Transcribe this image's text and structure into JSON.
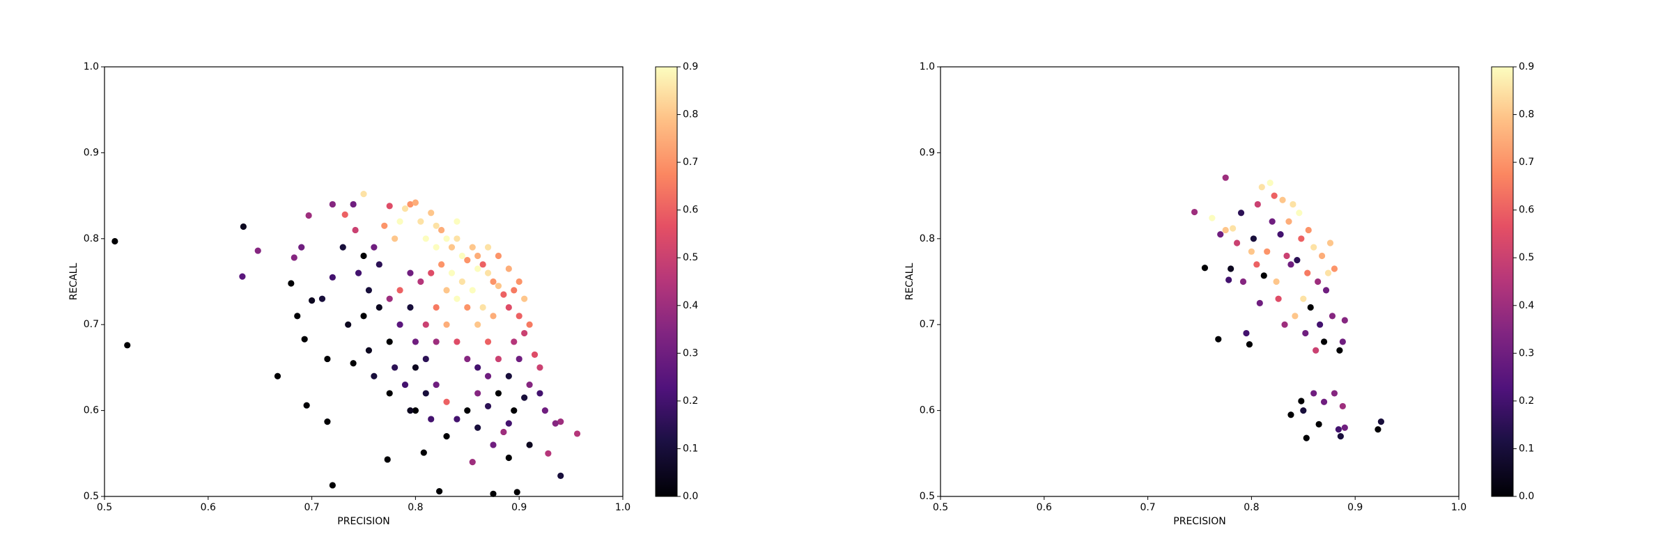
{
  "chart_data": [
    {
      "type": "scatter",
      "x_label": "PRECISION",
      "y_label": "RECALL",
      "xlim": [
        0.5,
        1
      ],
      "ylim": [
        0.5,
        1
      ],
      "xticks": [
        0.5,
        0.6,
        0.7,
        0.8,
        0.9,
        {
          "value": 1,
          "label": "1.0"
        }
      ],
      "yticks": [
        0.5,
        0.6,
        0.7,
        0.8,
        0.9,
        {
          "value": 1,
          "label": "1.0"
        }
      ],
      "colormap": "magma",
      "clim": [
        0,
        0.9
      ],
      "cticks": [
        {
          "value": 0,
          "label": "0.0"
        },
        0.1,
        0.2,
        0.3,
        0.4,
        0.5,
        0.6,
        0.7,
        0.8,
        0.9
      ],
      "x": [
        0.51,
        0.522,
        0.634,
        0.633,
        0.648,
        0.667,
        0.695,
        0.715,
        0.72,
        0.773,
        0.808,
        0.823,
        0.875,
        0.898,
        0.94,
        0.956,
        0.94,
        0.928,
        0.68,
        0.686,
        0.693,
        0.7,
        0.71,
        0.715,
        0.72,
        0.69,
        0.683,
        0.697,
        0.72,
        0.732,
        0.74,
        0.75,
        0.742,
        0.73,
        0.745,
        0.735,
        0.74,
        0.75,
        0.755,
        0.76,
        0.765,
        0.77,
        0.775,
        0.78,
        0.785,
        0.79,
        0.795,
        0.8,
        0.805,
        0.81,
        0.815,
        0.82,
        0.825,
        0.83,
        0.835,
        0.84,
        0.845,
        0.85,
        0.855,
        0.86,
        0.865,
        0.87,
        0.875,
        0.88,
        0.885,
        0.89,
        0.895,
        0.9,
        0.905,
        0.9,
        0.91,
        0.905,
        0.915,
        0.92,
        0.91,
        0.92,
        0.925,
        0.935,
        0.905,
        0.895,
        0.89,
        0.885,
        0.875,
        0.86,
        0.85,
        0.84,
        0.83,
        0.82,
        0.81,
        0.8,
        0.79,
        0.78,
        0.775,
        0.785,
        0.795,
        0.8,
        0.81,
        0.82,
        0.83,
        0.84,
        0.85,
        0.86,
        0.87,
        0.88,
        0.87,
        0.86,
        0.85,
        0.84,
        0.83,
        0.82,
        0.81,
        0.8,
        0.845,
        0.855,
        0.865,
        0.875,
        0.835,
        0.825,
        0.815,
        0.805,
        0.795,
        0.785,
        0.775,
        0.765,
        0.755,
        0.76,
        0.75,
        0.82,
        0.84,
        0.86,
        0.87,
        0.88,
        0.89,
        0.895,
        0.9,
        0.89,
        0.88,
        0.87,
        0.86,
        0.89,
        0.91,
        0.855,
        0.83,
        0.815,
        0.795,
        0.775
      ],
      "y": [
        0.797,
        0.676,
        0.814,
        0.756,
        0.786,
        0.64,
        0.606,
        0.587,
        0.513,
        0.543,
        0.551,
        0.506,
        0.503,
        0.505,
        0.524,
        0.573,
        0.587,
        0.55,
        0.748,
        0.71,
        0.683,
        0.728,
        0.73,
        0.66,
        0.755,
        0.79,
        0.778,
        0.827,
        0.84,
        0.828,
        0.84,
        0.852,
        0.81,
        0.79,
        0.76,
        0.7,
        0.655,
        0.71,
        0.67,
        0.64,
        0.77,
        0.815,
        0.838,
        0.8,
        0.82,
        0.835,
        0.84,
        0.842,
        0.82,
        0.8,
        0.83,
        0.815,
        0.81,
        0.8,
        0.79,
        0.8,
        0.78,
        0.775,
        0.79,
        0.765,
        0.77,
        0.76,
        0.75,
        0.745,
        0.735,
        0.765,
        0.74,
        0.75,
        0.73,
        0.71,
        0.7,
        0.69,
        0.665,
        0.65,
        0.63,
        0.62,
        0.6,
        0.585,
        0.615,
        0.6,
        0.585,
        0.575,
        0.56,
        0.58,
        0.6,
        0.59,
        0.61,
        0.63,
        0.62,
        0.6,
        0.63,
        0.65,
        0.68,
        0.7,
        0.72,
        0.68,
        0.7,
        0.72,
        0.74,
        0.73,
        0.72,
        0.7,
        0.68,
        0.66,
        0.64,
        0.65,
        0.66,
        0.68,
        0.7,
        0.68,
        0.66,
        0.65,
        0.75,
        0.74,
        0.72,
        0.71,
        0.76,
        0.77,
        0.76,
        0.75,
        0.76,
        0.74,
        0.73,
        0.72,
        0.74,
        0.79,
        0.78,
        0.79,
        0.82,
        0.78,
        0.79,
        0.78,
        0.72,
        0.68,
        0.66,
        0.64,
        0.62,
        0.605,
        0.62,
        0.545,
        0.56,
        0.54,
        0.57,
        0.59,
        0.6,
        0.62
      ],
      "c": [
        0,
        0,
        0.05,
        0.25,
        0.35,
        0,
        0,
        0,
        0,
        0,
        0,
        0,
        0,
        0,
        0.1,
        0.45,
        0.4,
        0.45,
        0,
        0,
        0,
        0.05,
        0.1,
        0,
        0.2,
        0.3,
        0.35,
        0.4,
        0.35,
        0.6,
        0.3,
        0.85,
        0.5,
        0.1,
        0.2,
        0.05,
        0,
        0,
        0.05,
        0.1,
        0.15,
        0.7,
        0.55,
        0.8,
        0.9,
        0.85,
        0.7,
        0.75,
        0.85,
        0.9,
        0.8,
        0.85,
        0.75,
        0.9,
        0.8,
        0.85,
        0.9,
        0.7,
        0.8,
        0.9,
        0.6,
        0.85,
        0.7,
        0.8,
        0.6,
        0.75,
        0.65,
        0.7,
        0.8,
        0.6,
        0.65,
        0.5,
        0.55,
        0.5,
        0.35,
        0.2,
        0.3,
        0.35,
        0.1,
        0,
        0.2,
        0.4,
        0.3,
        0.1,
        0,
        0.2,
        0.6,
        0.3,
        0.1,
        0,
        0.2,
        0.15,
        0,
        0.25,
        0.1,
        0.3,
        0.5,
        0.65,
        0.8,
        0.9,
        0.7,
        0.8,
        0.6,
        0.5,
        0.3,
        0.2,
        0.35,
        0.55,
        0.75,
        0.4,
        0.15,
        0.05,
        0.85,
        0.9,
        0.85,
        0.75,
        0.9,
        0.7,
        0.55,
        0.45,
        0.3,
        0.6,
        0.4,
        0.05,
        0.1,
        0.3,
        0,
        0.9,
        0.9,
        0.75,
        0.85,
        0.7,
        0.55,
        0.45,
        0.3,
        0.1,
        0,
        0.15,
        0.35,
        0,
        0.05,
        0.4,
        0,
        0.2,
        0.05,
        0
      ]
    },
    {
      "type": "scatter",
      "x_label": "PRECISION",
      "y_label": "RECALL",
      "xlim": [
        0.5,
        1
      ],
      "ylim": [
        0.5,
        1
      ],
      "xticks": [
        0.5,
        0.6,
        0.7,
        0.8,
        0.9,
        {
          "value": 1,
          "label": "1.0"
        }
      ],
      "yticks": [
        0.5,
        0.6,
        0.7,
        0.8,
        0.9,
        {
          "value": 1,
          "label": "1.0"
        }
      ],
      "colormap": "magma",
      "clim": [
        0,
        0.9
      ],
      "cticks": [
        {
          "value": 0,
          "label": "0.0"
        },
        0.1,
        0.2,
        0.3,
        0.4,
        0.5,
        0.6,
        0.7,
        0.8,
        0.9
      ],
      "x": [
        0.745,
        0.755,
        0.762,
        0.768,
        0.77,
        0.775,
        0.775,
        0.778,
        0.78,
        0.782,
        0.786,
        0.79,
        0.792,
        0.795,
        0.798,
        0.8,
        0.802,
        0.805,
        0.806,
        0.808,
        0.81,
        0.812,
        0.815,
        0.818,
        0.82,
        0.822,
        0.824,
        0.826,
        0.828,
        0.83,
        0.832,
        0.834,
        0.836,
        0.838,
        0.84,
        0.842,
        0.844,
        0.846,
        0.848,
        0.85,
        0.852,
        0.854,
        0.855,
        0.857,
        0.86,
        0.862,
        0.864,
        0.866,
        0.868,
        0.87,
        0.872,
        0.874,
        0.876,
        0.878,
        0.88,
        0.885,
        0.888,
        0.89,
        0.838,
        0.848,
        0.85,
        0.853,
        0.86,
        0.865,
        0.87,
        0.88,
        0.884,
        0.886,
        0.888,
        0.89,
        0.922,
        0.925
      ],
      "y": [
        0.831,
        0.766,
        0.824,
        0.683,
        0.805,
        0.81,
        0.871,
        0.752,
        0.765,
        0.812,
        0.795,
        0.83,
        0.75,
        0.69,
        0.677,
        0.785,
        0.8,
        0.77,
        0.84,
        0.725,
        0.86,
        0.757,
        0.785,
        0.865,
        0.82,
        0.85,
        0.75,
        0.73,
        0.805,
        0.845,
        0.7,
        0.78,
        0.82,
        0.77,
        0.84,
        0.71,
        0.775,
        0.83,
        0.8,
        0.73,
        0.69,
        0.76,
        0.81,
        0.72,
        0.79,
        0.67,
        0.75,
        0.7,
        0.78,
        0.68,
        0.74,
        0.76,
        0.795,
        0.71,
        0.765,
        0.67,
        0.68,
        0.705,
        0.595,
        0.611,
        0.6,
        0.568,
        0.62,
        0.584,
        0.61,
        0.62,
        0.578,
        0.57,
        0.605,
        0.58,
        0.578,
        0.587
      ],
      "c": [
        0.4,
        0,
        0.9,
        0,
        0.3,
        0.8,
        0.4,
        0.2,
        0.05,
        0.85,
        0.5,
        0.15,
        0.35,
        0.2,
        0,
        0.8,
        0.1,
        0.6,
        0.5,
        0.3,
        0.85,
        0,
        0.7,
        0.9,
        0.3,
        0.6,
        0.8,
        0.55,
        0.2,
        0.8,
        0.4,
        0.5,
        0.75,
        0.3,
        0.85,
        0.8,
        0.15,
        0.9,
        0.6,
        0.85,
        0.3,
        0.65,
        0.7,
        0,
        0.85,
        0.5,
        0.4,
        0.2,
        0.75,
        0,
        0.3,
        0.85,
        0.8,
        0.35,
        0.7,
        0,
        0.3,
        0.35,
        0,
        0,
        0.1,
        0,
        0.3,
        0,
        0.3,
        0.35,
        0.2,
        0.1,
        0.4,
        0.3,
        0,
        0.1
      ]
    }
  ]
}
